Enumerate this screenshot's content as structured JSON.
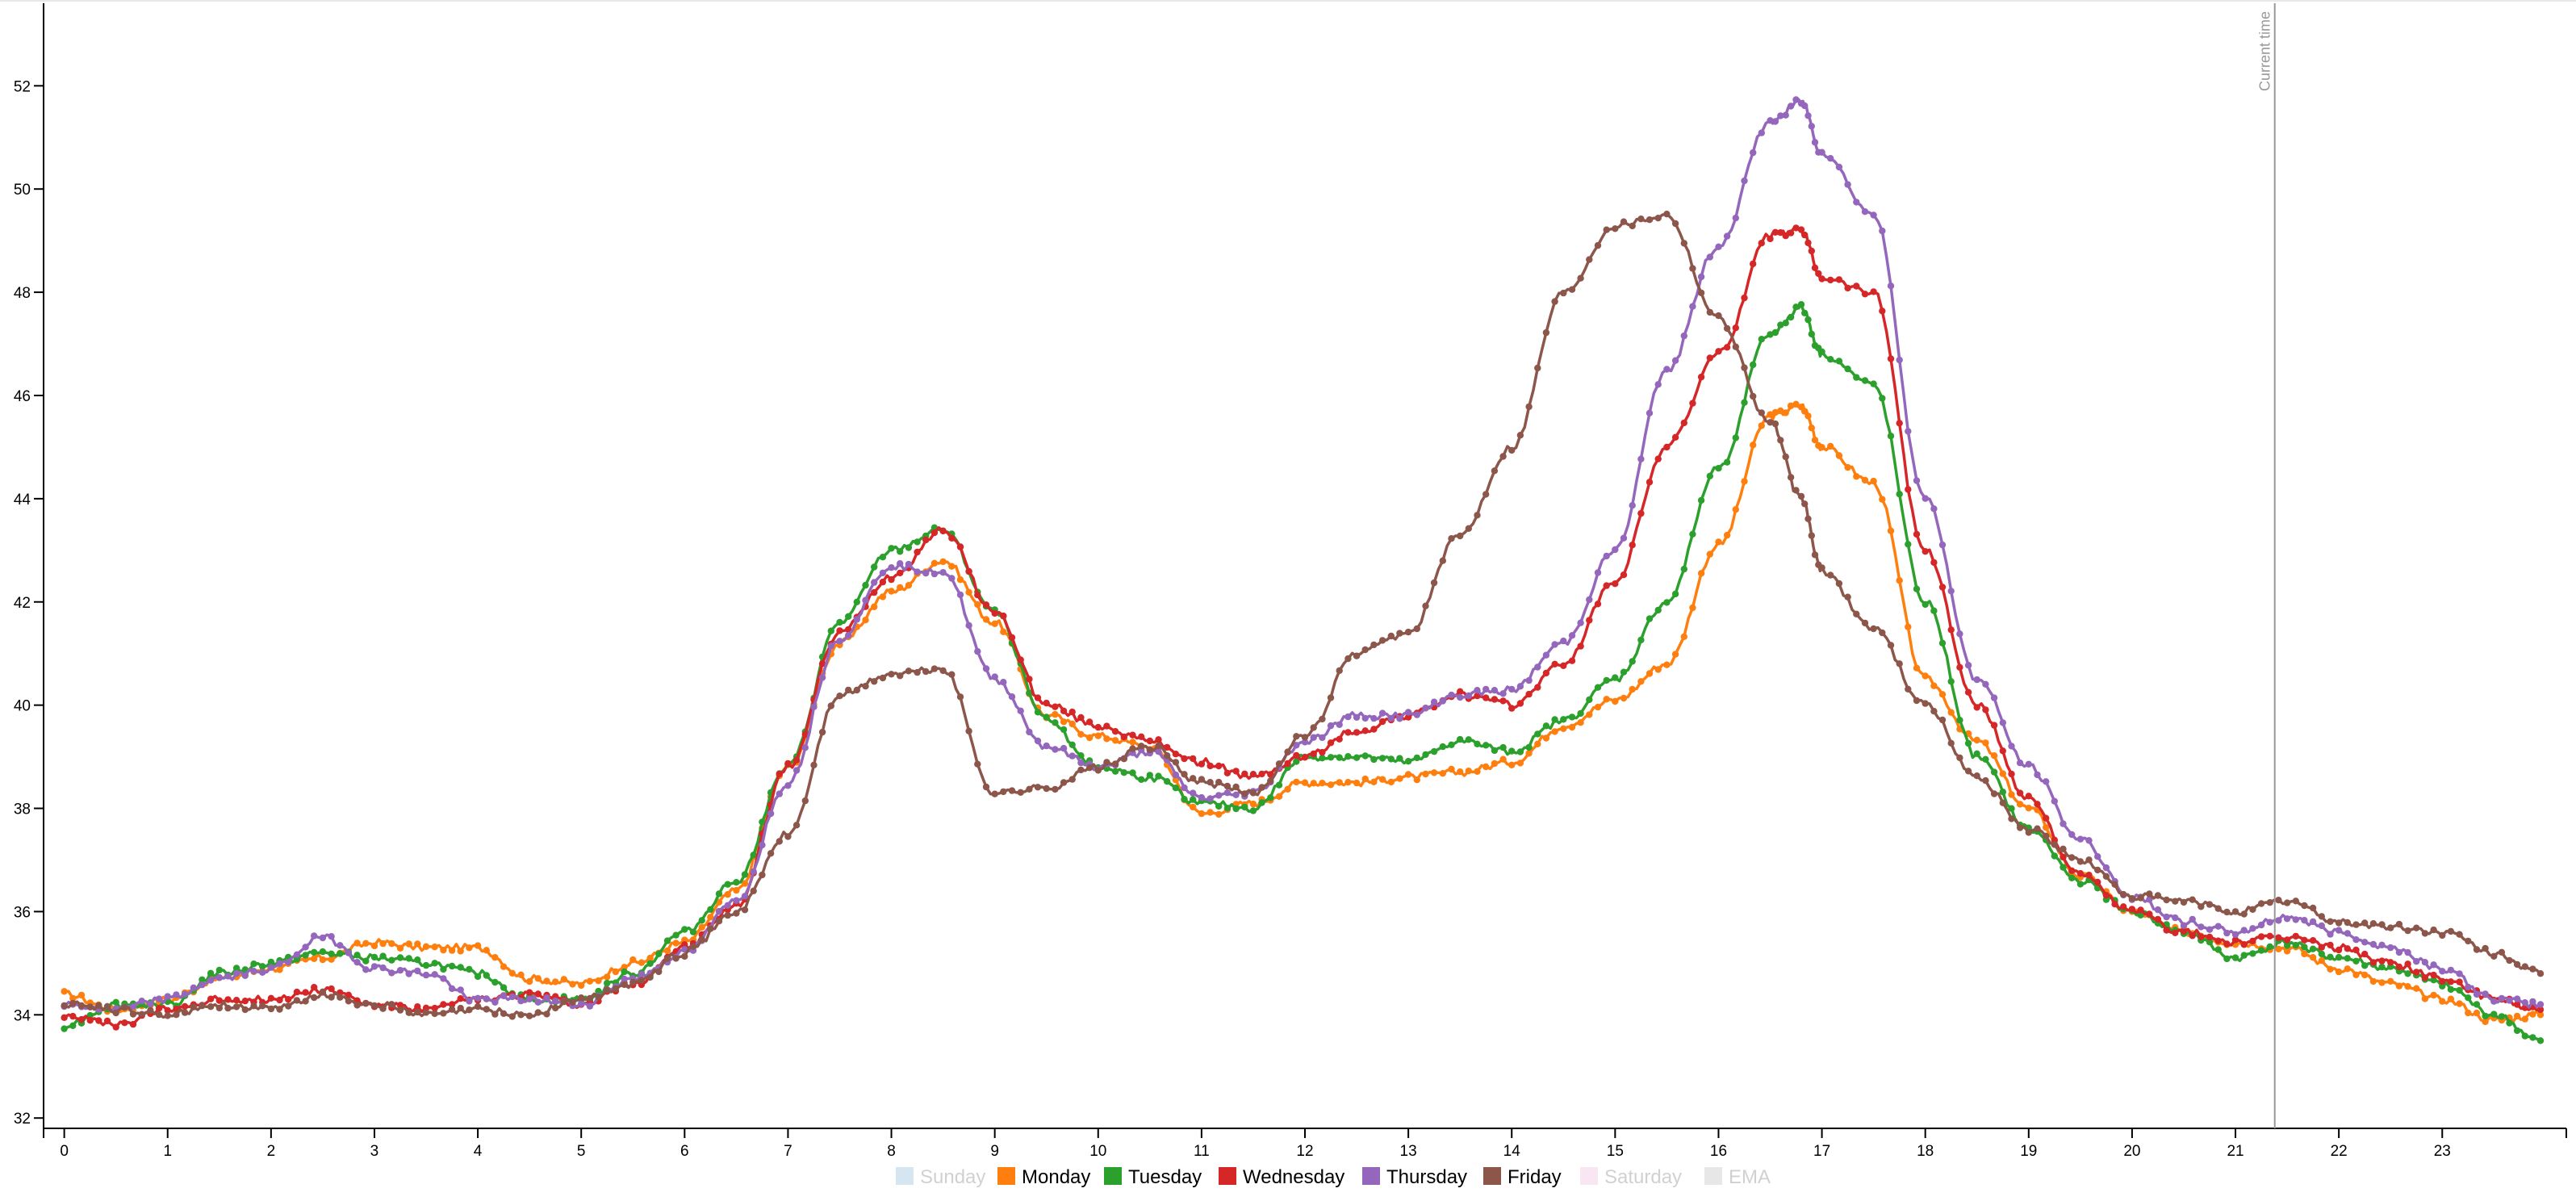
{
  "chart_data": {
    "type": "line",
    "x_ticks": [
      "0",
      "1",
      "2",
      "3",
      "4",
      "5",
      "6",
      "7",
      "8",
      "9",
      "10",
      "11",
      "12",
      "13",
      "14",
      "15",
      "16",
      "17",
      "18",
      "19",
      "20",
      "21",
      "22",
      "23"
    ],
    "y_ticks": [
      "32",
      "34",
      "36",
      "38",
      "40",
      "42",
      "44",
      "46",
      "48",
      "50",
      "52"
    ],
    "xlim": [
      -0.2,
      24.2
    ],
    "ylim": [
      31.8,
      53.6
    ],
    "current_time_label": "Current time",
    "current_time_x": 21.38,
    "legend": [
      {
        "name": "Sunday",
        "color": "#1f77b4",
        "enabled": false
      },
      {
        "name": "Monday",
        "color": "#ff7f0e",
        "enabled": true
      },
      {
        "name": "Tuesday",
        "color": "#2ca02c",
        "enabled": true
      },
      {
        "name": "Wednesday",
        "color": "#d62728",
        "enabled": true
      },
      {
        "name": "Thursday",
        "color": "#9467bd",
        "enabled": true
      },
      {
        "name": "Friday",
        "color": "#8c564b",
        "enabled": true
      },
      {
        "name": "Saturday",
        "color": "#e377c2",
        "enabled": false
      },
      {
        "name": "EMA",
        "color": "#7f7f7f",
        "enabled": false
      }
    ],
    "series": [
      {
        "name": "Monday",
        "color": "#ff7f0e",
        "x": [
          0,
          0.5,
          1,
          1.5,
          2,
          2.5,
          3,
          3.5,
          4,
          4.5,
          5,
          5.5,
          6,
          6.5,
          7,
          7.5,
          8,
          8.5,
          9,
          9.5,
          10,
          10.5,
          11,
          11.5,
          12,
          12.5,
          13,
          13.5,
          14,
          14.5,
          15,
          15.5,
          16,
          16.5,
          16.8,
          17,
          17.5,
          18,
          18.5,
          19,
          19.5,
          20,
          20.5,
          21,
          21.5,
          22,
          22.5,
          23,
          23.5,
          23.95
        ],
        "y": [
          34.4,
          34.1,
          34.3,
          34.7,
          34.9,
          35.1,
          35.4,
          35.3,
          35.3,
          34.7,
          34.6,
          35.0,
          35.4,
          36.4,
          38.8,
          41.2,
          42.2,
          42.8,
          41.6,
          39.8,
          39.4,
          39.2,
          37.9,
          38.1,
          38.5,
          38.5,
          38.6,
          38.7,
          38.9,
          39.6,
          40.1,
          40.8,
          43.1,
          45.6,
          45.8,
          45.0,
          44.3,
          40.5,
          39.3,
          38.0,
          36.7,
          36.0,
          35.6,
          35.4,
          35.3,
          34.9,
          34.6,
          34.3,
          33.9,
          34.0
        ]
      },
      {
        "name": "Tuesday",
        "color": "#2ca02c",
        "x": [
          0,
          0.5,
          1,
          1.5,
          2,
          2.5,
          3,
          3.5,
          4,
          4.5,
          5,
          5.5,
          6,
          6.5,
          7,
          7.5,
          8,
          8.5,
          9,
          9.5,
          10,
          10.5,
          11,
          11.5,
          12,
          12.5,
          13,
          13.5,
          14,
          14.5,
          15,
          15.5,
          16,
          16.5,
          16.8,
          17,
          17.5,
          18,
          18.5,
          19,
          19.5,
          20,
          20.5,
          21,
          21.5,
          22,
          22.5,
          23,
          23.5,
          23.95
        ],
        "y": [
          33.8,
          34.2,
          34.2,
          34.8,
          35.0,
          35.2,
          35.1,
          35.0,
          34.8,
          34.3,
          34.3,
          34.8,
          35.6,
          36.6,
          38.8,
          41.6,
          43.0,
          43.4,
          41.8,
          39.7,
          38.8,
          38.6,
          38.1,
          38.0,
          39.0,
          39.0,
          38.9,
          39.3,
          39.1,
          39.7,
          40.5,
          42.0,
          44.6,
          47.2,
          47.7,
          46.8,
          46.2,
          42.0,
          39.0,
          37.6,
          36.6,
          36.0,
          35.6,
          35.1,
          35.4,
          35.1,
          34.9,
          34.6,
          34.0,
          33.5
        ]
      },
      {
        "name": "Wednesday",
        "color": "#d62728",
        "x": [
          0,
          0.5,
          1,
          1.5,
          2,
          2.5,
          3,
          3.5,
          4,
          4.5,
          5,
          5.5,
          6,
          6.5,
          7,
          7.5,
          8,
          8.5,
          9,
          9.5,
          10,
          10.5,
          11,
          11.5,
          12,
          12.5,
          13,
          13.5,
          14,
          14.5,
          15,
          15.5,
          16,
          16.5,
          16.8,
          17,
          17.5,
          18,
          18.5,
          19,
          19.5,
          20,
          20.5,
          21,
          21.5,
          22,
          22.5,
          23,
          23.5,
          23.95
        ],
        "y": [
          34.0,
          33.8,
          34.1,
          34.3,
          34.3,
          34.5,
          34.2,
          34.1,
          34.3,
          34.4,
          34.2,
          34.6,
          35.3,
          36.1,
          38.8,
          41.4,
          42.5,
          43.4,
          41.8,
          40.0,
          39.6,
          39.3,
          38.9,
          38.6,
          39.0,
          39.5,
          39.8,
          40.2,
          40.0,
          40.8,
          42.4,
          45.0,
          46.8,
          49.1,
          49.2,
          48.3,
          48.0,
          43.0,
          40.0,
          38.2,
          36.7,
          36.0,
          35.6,
          35.4,
          35.5,
          35.3,
          35.0,
          34.7,
          34.3,
          34.1
        ]
      },
      {
        "name": "Thursday",
        "color": "#9467bd",
        "x": [
          0,
          0.5,
          1,
          1.5,
          2,
          2.5,
          3,
          3.5,
          4,
          4.5,
          5,
          5.5,
          6,
          6.5,
          7,
          7.5,
          8,
          8.5,
          9,
          9.5,
          10,
          10.5,
          11,
          11.5,
          12,
          12.5,
          13,
          13.5,
          14,
          14.5,
          15,
          15.5,
          16,
          16.5,
          16.8,
          17,
          17.5,
          18,
          18.5,
          19,
          19.5,
          20,
          20.5,
          21,
          21.5,
          22,
          22.5,
          23,
          23.5,
          23.95
        ],
        "y": [
          34.2,
          34.1,
          34.3,
          34.7,
          34.9,
          35.5,
          34.9,
          34.8,
          34.3,
          34.3,
          34.2,
          34.7,
          35.2,
          36.2,
          38.5,
          41.3,
          42.7,
          42.6,
          40.5,
          39.2,
          38.8,
          39.1,
          38.2,
          38.3,
          39.3,
          39.8,
          39.8,
          40.2,
          40.3,
          41.2,
          43.0,
          46.5,
          48.9,
          51.3,
          51.7,
          50.7,
          49.5,
          44.0,
          40.5,
          38.8,
          37.4,
          36.3,
          35.8,
          35.6,
          35.9,
          35.6,
          35.3,
          34.9,
          34.3,
          34.2
        ]
      },
      {
        "name": "Friday",
        "color": "#8c564b",
        "x": [
          0,
          0.5,
          1,
          1.5,
          2,
          2.5,
          3,
          3.5,
          4,
          4.5,
          5,
          5.5,
          6,
          6.5,
          7,
          7.5,
          8,
          8.5,
          9,
          9.5,
          10,
          10.5,
          11,
          11.5,
          12,
          12.5,
          13,
          13.5,
          14,
          14.5,
          15,
          15.5,
          16,
          16.5,
          16.8,
          17,
          17.5,
          18,
          18.5,
          19,
          19.5,
          20,
          20.5,
          21,
          21.5,
          22,
          22.5,
          23,
          23.5,
          23.95
        ],
        "y": [
          34.2,
          34.1,
          34.0,
          34.2,
          34.1,
          34.4,
          34.2,
          34.0,
          34.1,
          34.0,
          34.3,
          34.6,
          35.2,
          36.0,
          37.5,
          40.2,
          40.6,
          40.7,
          38.3,
          38.4,
          38.8,
          39.2,
          38.5,
          38.3,
          39.4,
          41.0,
          41.4,
          43.3,
          45.0,
          48.0,
          49.3,
          49.5,
          47.5,
          45.5,
          44.0,
          42.6,
          41.5,
          40.0,
          38.6,
          37.6,
          37.0,
          36.3,
          36.2,
          36.0,
          36.2,
          35.8,
          35.7,
          35.6,
          35.2,
          34.8
        ]
      }
    ]
  }
}
